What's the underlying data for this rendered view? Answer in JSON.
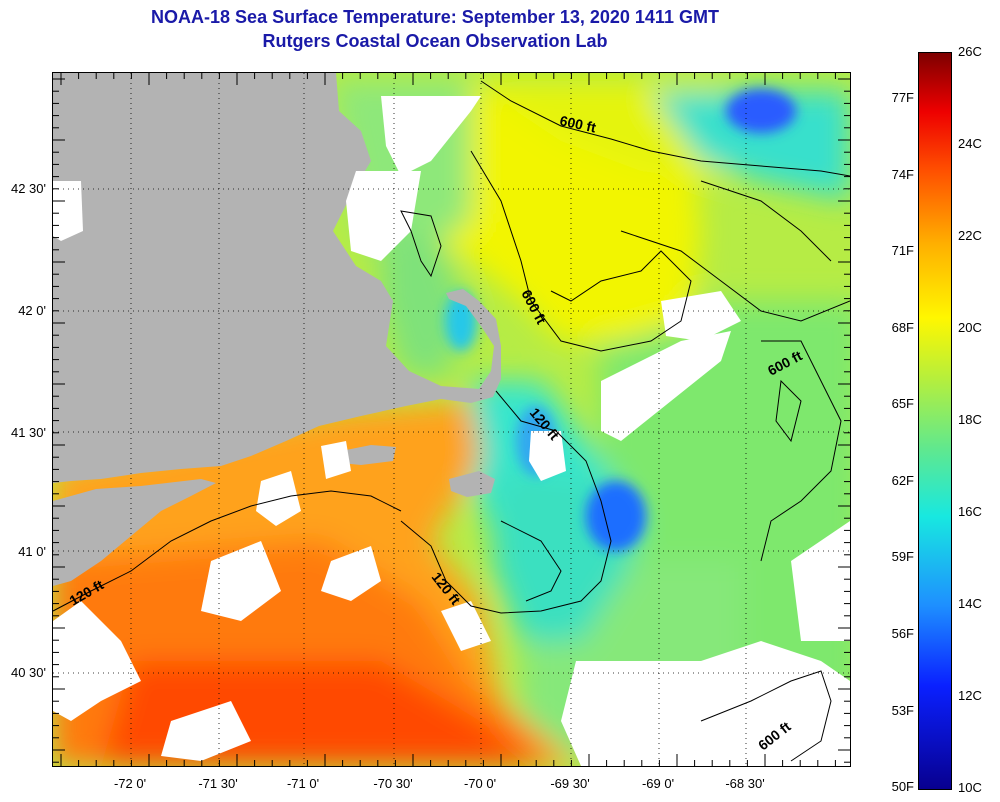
{
  "header": {
    "title": "NOAA-18 Sea Surface Temperature:  September 13, 2020 1411 GMT",
    "subtitle": "Rutgers Coastal Ocean Observation Lab"
  },
  "map": {
    "latitude_labels": [
      "42 30'",
      "42 0'",
      "41 30'",
      "41 0'",
      "40 30'"
    ],
    "longitude_labels": [
      "-72 0'",
      "-71 30'",
      "-71 0'",
      "-70 30'",
      "-70 0'",
      "-69 30'",
      "-69 0'",
      "-68 30'"
    ],
    "isobath_labels": [
      "600 ft",
      "600 ft",
      "600 ft",
      "600 ft",
      "120 ft",
      "120 ft",
      "120 ft"
    ],
    "colors": {
      "land": "#b3b3b3",
      "cloud": "#ffffff",
      "warm": "#ff5a00",
      "orange": "#ffa21a",
      "yellow": "#f2f500",
      "green_yellow": "#b6ec45",
      "green": "#7ee86d",
      "cyan": "#38e6cc",
      "blue": "#1f6eff"
    }
  },
  "colorbar": {
    "fahrenheit_labels": [
      "77F",
      "74F",
      "71F",
      "68F",
      "65F",
      "62F",
      "59F",
      "56F",
      "53F",
      "50F"
    ],
    "celsius_labels": [
      "26C",
      "24C",
      "22C",
      "20C",
      "18C",
      "16C",
      "14C",
      "12C",
      "10C"
    ],
    "range_c": [
      10,
      26
    ],
    "range_f": [
      50,
      78.8
    ]
  }
}
